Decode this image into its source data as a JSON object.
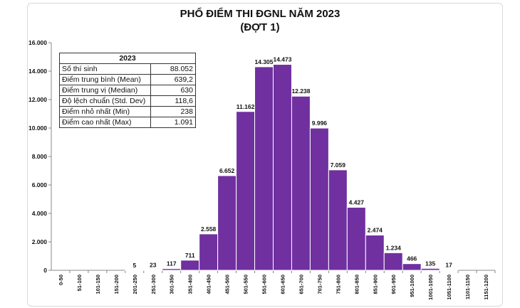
{
  "title_line1": "PHỔ ĐIỂM THI ĐGNL NĂM 2023",
  "title_line2": "(ĐỢT 1)",
  "stats_table": {
    "header": "2023",
    "rows": [
      {
        "label": "Số thí sinh",
        "value": "88.052"
      },
      {
        "label": "Điểm trung bình (Mean)",
        "value": "639,2"
      },
      {
        "label": "Điểm trung vị (Median)",
        "value": "630"
      },
      {
        "label": "Độ lệch chuẩn (Std. Dev)",
        "value": "118,6"
      },
      {
        "label": "Điểm nhỏ nhất (Min)",
        "value": "238"
      },
      {
        "label": "Điểm cao nhất (Max)",
        "value": "1.091"
      }
    ]
  },
  "colors": {
    "bar": "#7030a0",
    "bar_edge": "#ffffff",
    "axis": "#888888"
  },
  "chart_data": {
    "type": "bar",
    "title": "PHỔ ĐIỂM THI ĐGNL NĂM 2023 (ĐỢT 1)",
    "xlabel": "",
    "ylabel": "",
    "ylim": [
      0,
      16000
    ],
    "yticks": [
      0,
      2000,
      4000,
      6000,
      8000,
      10000,
      12000,
      14000,
      16000
    ],
    "ytick_labels": [
      "0",
      "2.000",
      "4.000",
      "6.000",
      "8.000",
      "10.000",
      "12.000",
      "14.000",
      "16.000"
    ],
    "grid": false,
    "categories": [
      "0-50",
      "51-100",
      "101-150",
      "151-200",
      "201-250",
      "251-300",
      "301-350",
      "351-400",
      "401-450",
      "451-500",
      "501-550",
      "551-600",
      "601-650",
      "651-700",
      "701-750",
      "751-800",
      "801-850",
      "851-900",
      "901-950",
      "951-1000",
      "1001-1050",
      "1051-1100",
      "1101-1150",
      "1151-1200"
    ],
    "values": [
      0,
      0,
      0,
      0,
      5,
      23,
      117,
      711,
      2558,
      6652,
      11162,
      14305,
      14473,
      12238,
      9996,
      7059,
      4427,
      2474,
      1234,
      466,
      135,
      17,
      0,
      0
    ],
    "value_labels": [
      "",
      "",
      "",
      "",
      "5",
      "23",
      "117",
      "711",
      "2.558",
      "6.652",
      "11.162",
      "14.305",
      "14.473",
      "12.238",
      "9.996",
      "7.059",
      "4.427",
      "2.474",
      "1.234",
      "466",
      "135",
      "17",
      "",
      ""
    ]
  }
}
